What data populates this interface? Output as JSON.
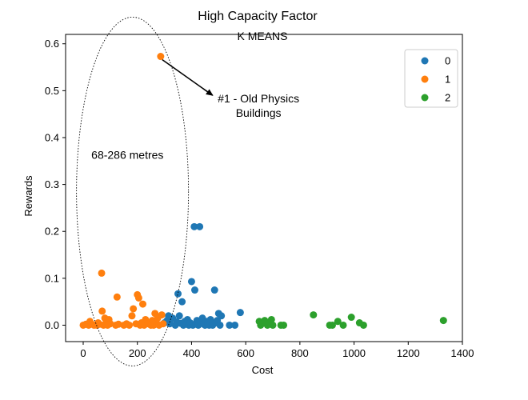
{
  "chart_data": {
    "type": "scatter",
    "title": "High Capacity Factor",
    "subtitle": "K MEANS",
    "xlabel": "Cost",
    "ylabel": "Rewards",
    "xlim": [
      -65,
      1400
    ],
    "ylim": [
      -0.035,
      0.62
    ],
    "xticks": [
      0,
      200,
      400,
      600,
      800,
      1000,
      1200,
      1400
    ],
    "yticks": [
      0.0,
      0.1,
      0.2,
      0.3,
      0.4,
      0.5,
      0.6
    ],
    "grid": false,
    "legend_position": "top-right",
    "series": [
      {
        "name": "0",
        "color": "#1f77b4",
        "points": [
          [
            300,
            0.005
          ],
          [
            310,
            0.01
          ],
          [
            315,
            0.02
          ],
          [
            320,
            0.003
          ],
          [
            330,
            0.015
          ],
          [
            340,
            0.0
          ],
          [
            345,
            0.007
          ],
          [
            350,
            0.067
          ],
          [
            355,
            0.02
          ],
          [
            360,
            0.004
          ],
          [
            365,
            0.05
          ],
          [
            370,
            0.0
          ],
          [
            375,
            0.008
          ],
          [
            380,
            0.003
          ],
          [
            385,
            0.012
          ],
          [
            390,
            0.0
          ],
          [
            395,
            0.005
          ],
          [
            400,
            0.093
          ],
          [
            405,
            0.0
          ],
          [
            410,
            0.21
          ],
          [
            412,
            0.075
          ],
          [
            415,
            0.003
          ],
          [
            420,
            0.01
          ],
          [
            425,
            0.0
          ],
          [
            430,
            0.21
          ],
          [
            435,
            0.005
          ],
          [
            440,
            0.015
          ],
          [
            445,
            0.002
          ],
          [
            450,
            0.0
          ],
          [
            455,
            0.008
          ],
          [
            460,
            0.004
          ],
          [
            465,
            0.0
          ],
          [
            470,
            0.012
          ],
          [
            478,
            0.0
          ],
          [
            485,
            0.075
          ],
          [
            490,
            0.005
          ],
          [
            495,
            0.01
          ],
          [
            500,
            0.025
          ],
          [
            505,
            0.0
          ],
          [
            510,
            0.02
          ],
          [
            540,
            0.0
          ],
          [
            560,
            0.0
          ],
          [
            580,
            0.027
          ]
        ]
      },
      {
        "name": "1",
        "color": "#ff7f0e",
        "points": [
          [
            0,
            0.0
          ],
          [
            10,
            0.002
          ],
          [
            20,
            0.0
          ],
          [
            25,
            0.008
          ],
          [
            30,
            0.003
          ],
          [
            40,
            0.0
          ],
          [
            50,
            0.0
          ],
          [
            55,
            0.005
          ],
          [
            60,
            0.002
          ],
          [
            68,
            0.111
          ],
          [
            70,
            0.03
          ],
          [
            75,
            0.0
          ],
          [
            80,
            0.015
          ],
          [
            85,
            0.005
          ],
          [
            90,
            0.0
          ],
          [
            95,
            0.012
          ],
          [
            100,
            0.003
          ],
          [
            120,
            0.0
          ],
          [
            125,
            0.06
          ],
          [
            130,
            0.002
          ],
          [
            150,
            0.0
          ],
          [
            160,
            0.003
          ],
          [
            170,
            0.0
          ],
          [
            180,
            0.02
          ],
          [
            185,
            0.035
          ],
          [
            195,
            0.003
          ],
          [
            200,
            0.065
          ],
          [
            205,
            0.058
          ],
          [
            210,
            0.0
          ],
          [
            215,
            0.005
          ],
          [
            220,
            0.045
          ],
          [
            225,
            0.0
          ],
          [
            230,
            0.012
          ],
          [
            240,
            0.003
          ],
          [
            250,
            0.0
          ],
          [
            255,
            0.01
          ],
          [
            260,
            0.0
          ],
          [
            265,
            0.025
          ],
          [
            270,
            0.005
          ],
          [
            275,
            0.015
          ],
          [
            280,
            0.0
          ],
          [
            286,
            0.573
          ],
          [
            290,
            0.022
          ],
          [
            295,
            0.003
          ]
        ]
      },
      {
        "name": "2",
        "color": "#2ca02c",
        "points": [
          [
            650,
            0.008
          ],
          [
            655,
            0.0
          ],
          [
            660,
            0.003
          ],
          [
            670,
            0.01
          ],
          [
            680,
            0.0
          ],
          [
            690,
            0.005
          ],
          [
            695,
            0.012
          ],
          [
            700,
            0.0
          ],
          [
            730,
            0.0
          ],
          [
            740,
            0.0
          ],
          [
            850,
            0.022
          ],
          [
            910,
            0.0
          ],
          [
            920,
            0.0
          ],
          [
            940,
            0.008
          ],
          [
            960,
            0.0
          ],
          [
            990,
            0.017
          ],
          [
            1020,
            0.005
          ],
          [
            1035,
            0.0
          ],
          [
            1330,
            0.01
          ]
        ]
      }
    ],
    "annotations": [
      {
        "id": "old-physics",
        "text_lines": [
          "#1 - Old Physics",
          "Buildings"
        ],
        "text_at": [
          470,
          0.475
        ],
        "arrow_from": [
          292,
          0.566
        ],
        "arrow_to": [
          478,
          0.49
        ]
      },
      {
        "id": "range",
        "text_lines": [
          "68-286 metres"
        ],
        "text_at": [
          30,
          0.355
        ]
      }
    ],
    "ellipse": {
      "center": [
        182,
        0.285
      ],
      "rx_data": 208,
      "ry_data": 0.375,
      "style": "dotted"
    }
  }
}
